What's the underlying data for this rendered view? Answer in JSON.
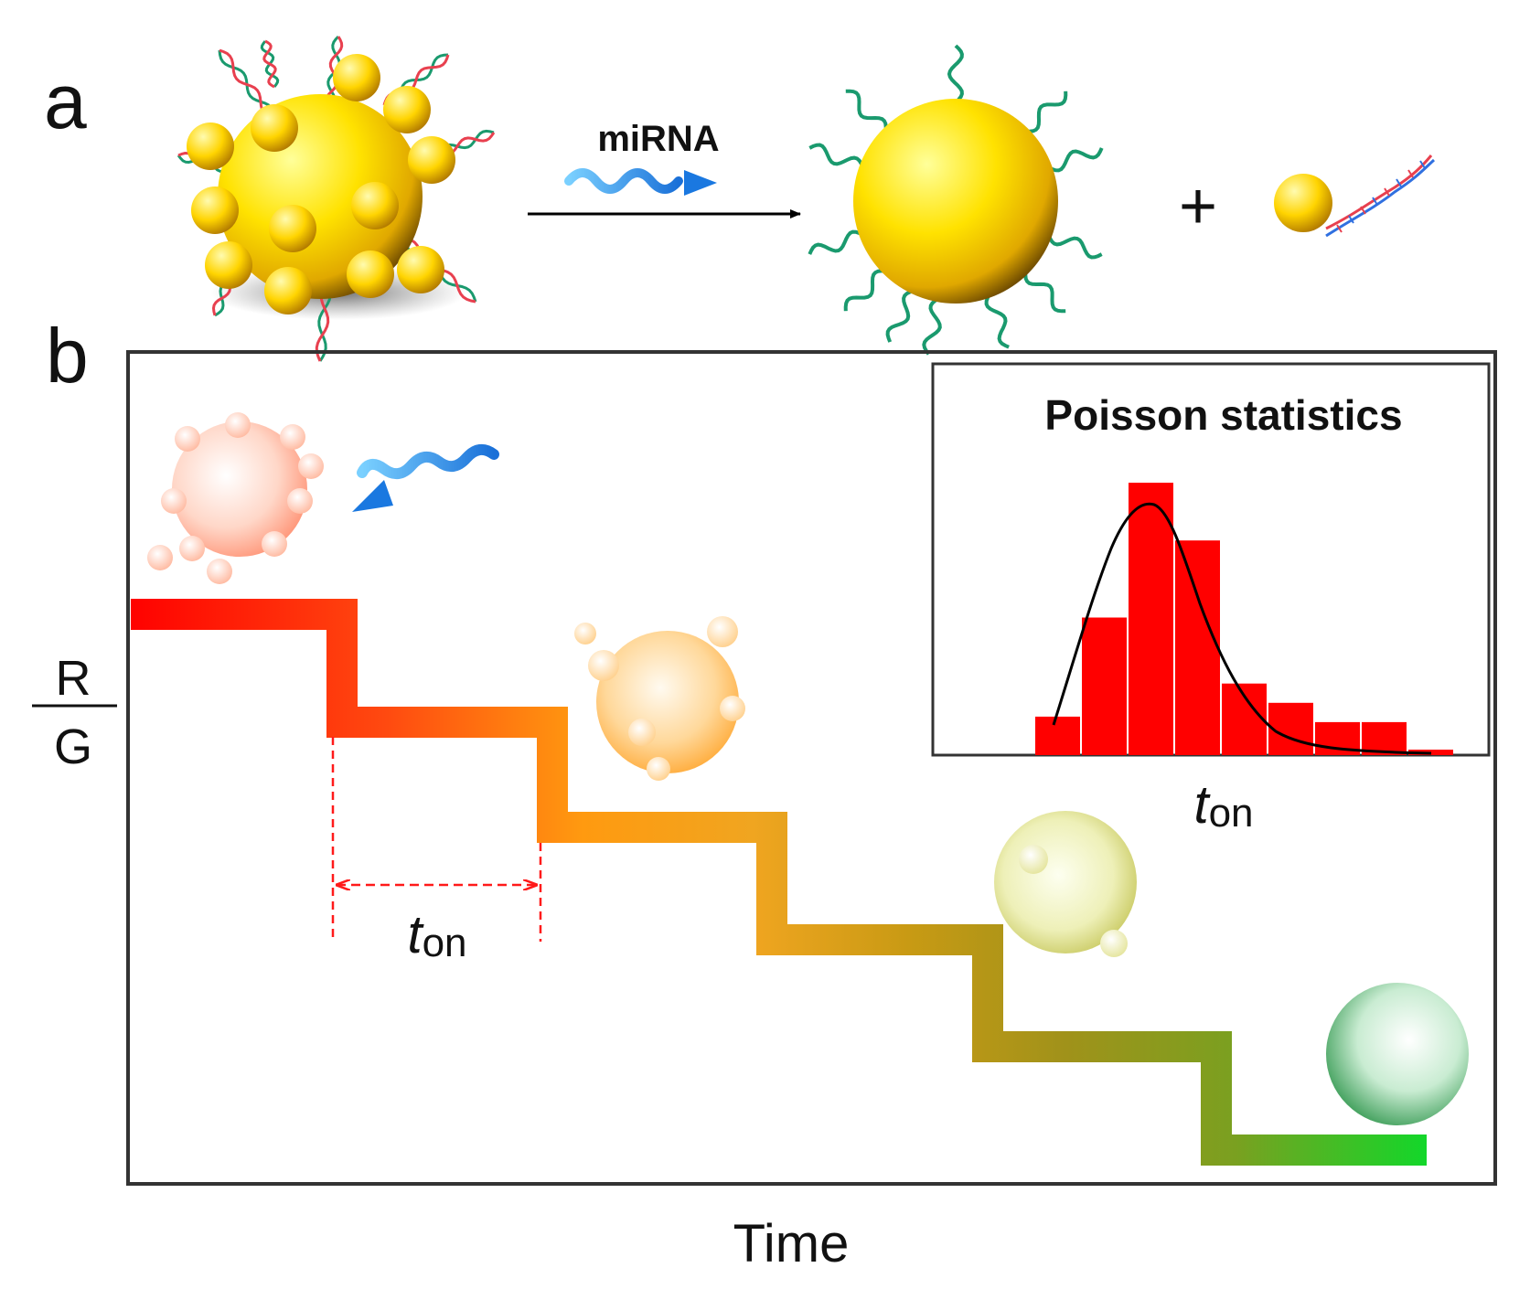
{
  "panel_a": {
    "label": "a",
    "arrow_label": "miRNA",
    "plus_sign": "+"
  },
  "panel_b": {
    "label": "b",
    "y_axis_numerator": "R",
    "y_axis_denominator": "G",
    "x_axis_label": "Time",
    "interval_label": {
      "italic": "t",
      "subscript": "on"
    },
    "inset": {
      "title": "Poisson statistics",
      "x_label": {
        "italic": "t",
        "subscript": "on"
      },
      "histogram_relative_heights": [
        0.14,
        0.5,
        0.99,
        0.78,
        0.26,
        0.19,
        0.12,
        0.12,
        0.02
      ],
      "bar_color": "#ff0000"
    }
  },
  "colors": {
    "gold": "#f2c200",
    "strand_green": "#1a9a6e",
    "strand_red": "#e8404f",
    "mirna_blue": "#2a8fe0",
    "step_start": "#ff0000",
    "step_mid": "#ffa010",
    "step_olive": "#a8961a",
    "step_end": "#18d02c",
    "guide_red": "#ff1a1a"
  }
}
